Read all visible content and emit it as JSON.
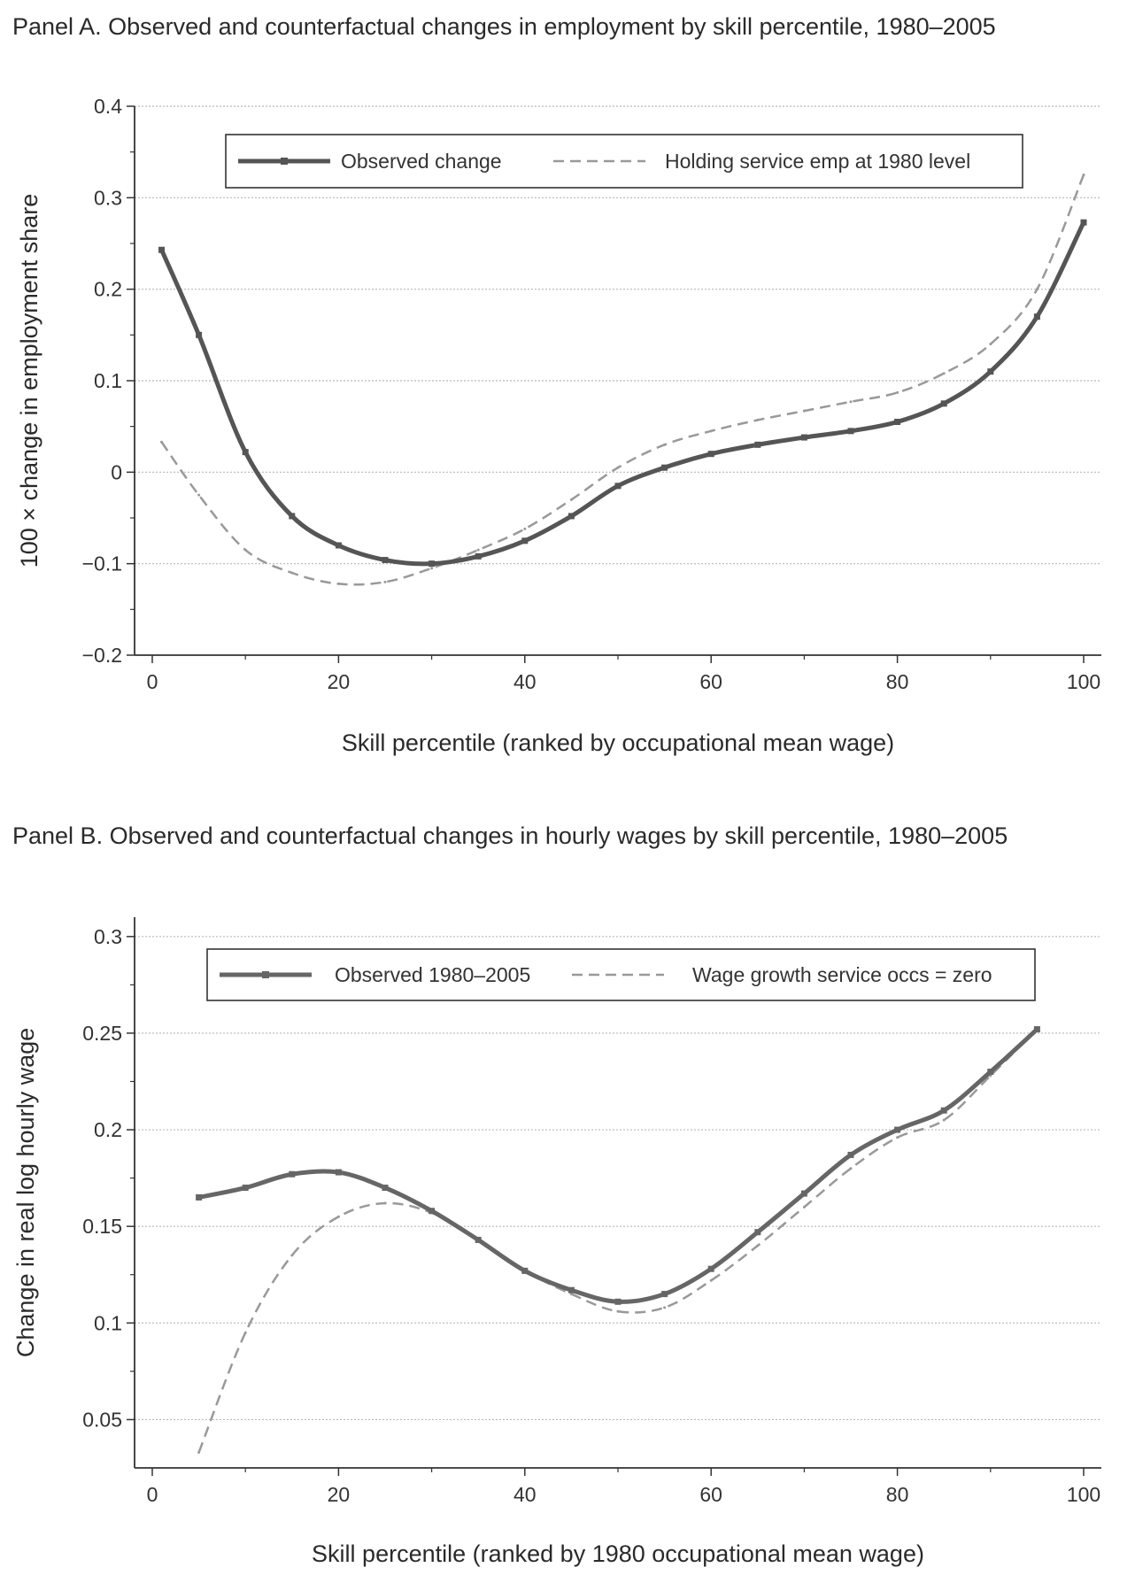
{
  "chart_data": [
    {
      "type": "line",
      "title": "Panel A. Observed and counterfactual changes in employment by skill percentile, 1980–2005",
      "xlabel": "Skill percentile (ranked by occupational mean wage)",
      "ylabel": "100 × change in employment share",
      "xlim": [
        0,
        100
      ],
      "ylim": [
        -0.2,
        0.4
      ],
      "xticks": [
        "0",
        "20",
        "40",
        "60",
        "80",
        "100"
      ],
      "yticks": [
        "0.4",
        "0.3",
        "0.2",
        "0.1",
        "0",
        "−0.1",
        "−0.2"
      ],
      "grid": true,
      "legend_position": "top",
      "x": [
        1,
        5,
        10,
        15,
        20,
        25,
        30,
        35,
        40,
        45,
        50,
        55,
        60,
        65,
        70,
        75,
        80,
        85,
        90,
        95,
        100
      ],
      "series": [
        {
          "name": "Observed change",
          "style": "solid-marker",
          "color": "#555555",
          "values": [
            0.243,
            0.15,
            0.022,
            -0.048,
            -0.08,
            -0.096,
            -0.1,
            -0.092,
            -0.075,
            -0.048,
            -0.015,
            0.005,
            0.02,
            0.03,
            0.038,
            0.045,
            0.055,
            0.075,
            0.11,
            0.17,
            0.273
          ]
        },
        {
          "name": "Holding service emp at 1980 level",
          "style": "dashed",
          "color": "#999999",
          "values": [
            0.033,
            -0.025,
            -0.085,
            -0.11,
            -0.122,
            -0.12,
            -0.105,
            -0.085,
            -0.062,
            -0.03,
            0.005,
            0.03,
            0.045,
            0.057,
            0.067,
            0.077,
            0.087,
            0.108,
            0.14,
            0.2,
            0.325
          ]
        }
      ]
    },
    {
      "type": "line",
      "title": "Panel B. Observed and counterfactual changes in hourly wages by skill percentile, 1980–2005",
      "xlabel": "Skill percentile (ranked by 1980 occupational mean wage)",
      "ylabel": "Change in real log hourly wage",
      "xlim": [
        0,
        100
      ],
      "ylim": [
        0.025,
        0.31
      ],
      "xticks": [
        "0",
        "20",
        "40",
        "60",
        "80",
        "100"
      ],
      "yticks": [
        "0.3",
        "0.25",
        "0.2",
        "0.15",
        "0.1",
        "0.05"
      ],
      "grid": true,
      "legend_position": "top",
      "x": [
        5,
        10,
        15,
        20,
        25,
        30,
        35,
        40,
        45,
        50,
        55,
        60,
        65,
        70,
        75,
        80,
        85,
        90,
        95
      ],
      "series": [
        {
          "name": "Observed 1980–2005",
          "style": "solid-marker",
          "color": "#666666",
          "values": [
            0.165,
            0.17,
            0.177,
            0.178,
            0.17,
            0.158,
            0.143,
            0.127,
            0.117,
            0.111,
            0.115,
            0.128,
            0.147,
            0.167,
            0.187,
            0.2,
            0.21,
            0.23,
            0.252
          ]
        },
        {
          "name": "Wage growth service occs = zero",
          "style": "dashed",
          "color": "#999999",
          "values": [
            0.033,
            0.095,
            0.135,
            0.155,
            0.162,
            0.157,
            0.143,
            0.127,
            0.115,
            0.106,
            0.108,
            0.122,
            0.14,
            0.16,
            0.18,
            0.196,
            0.205,
            0.228,
            0.252
          ]
        }
      ]
    }
  ]
}
